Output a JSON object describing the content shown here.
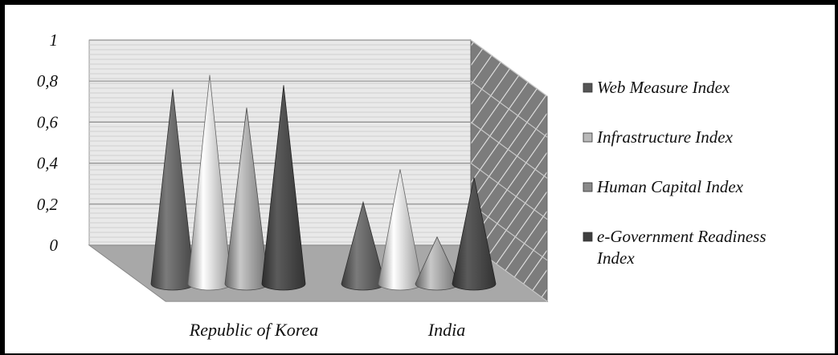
{
  "chart_data": {
    "type": "bar",
    "style": "3d-cone",
    "title": "",
    "xlabel": "",
    "ylabel": "",
    "categories": [
      "Republic of Korea",
      "India"
    ],
    "series": [
      {
        "name": "Web Measure Index",
        "values": [
          0.76,
          0.21
        ],
        "color": "#555555"
      },
      {
        "name": "Infrastructure Index",
        "values": [
          0.83,
          0.37
        ],
        "color": "#b9b9b9"
      },
      {
        "name": "Human Capital Index",
        "values": [
          0.67,
          0.04
        ],
        "color": "#8a8a8a"
      },
      {
        "name": "e-Government Readiness Index",
        "values": [
          0.78,
          0.33
        ],
        "color": "#3f3f3f"
      }
    ],
    "yticks": [
      "0",
      "0,2",
      "0,4",
      "0,6",
      "0,8",
      "1"
    ],
    "ylim": [
      0,
      1
    ],
    "grid": true,
    "legend_position": "right"
  }
}
